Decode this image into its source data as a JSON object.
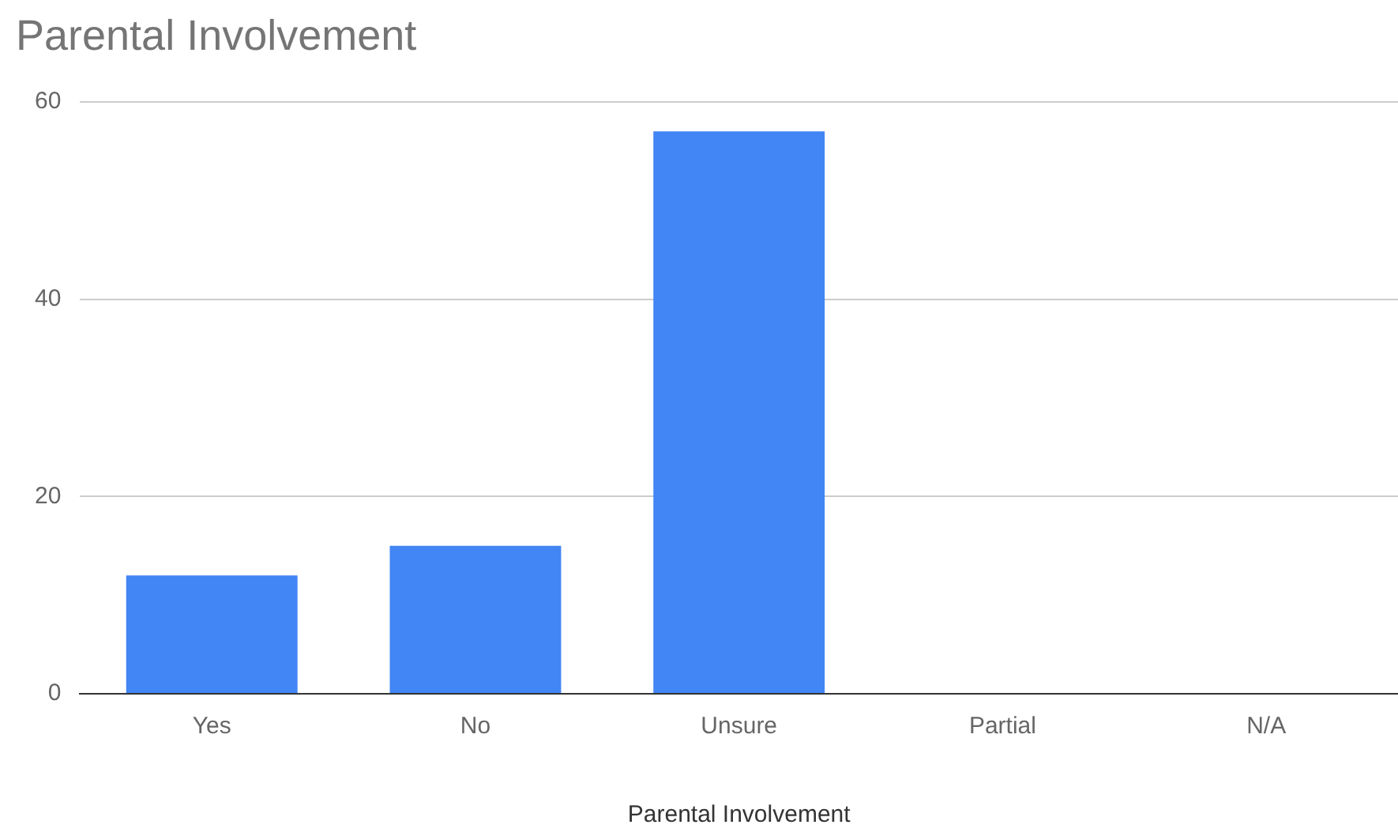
{
  "chart_data": {
    "type": "bar",
    "title": "Parental Involvement",
    "xlabel": "Parental Involvement",
    "categories": [
      "Yes",
      "No",
      "Unsure",
      "Partial",
      "N/A"
    ],
    "values": [
      12,
      15,
      57,
      0,
      0
    ],
    "color": "#4285f4",
    "ylim": [
      0,
      60
    ],
    "yticks": [
      0,
      20,
      40,
      60
    ],
    "grid": "y",
    "legend": false
  }
}
